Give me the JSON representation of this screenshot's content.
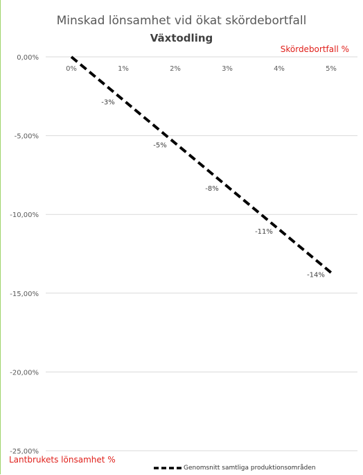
{
  "chart_data": {
    "type": "line",
    "title": "Minskad lönsamhet vid ökat skördebortfall",
    "subtitle": "Växtodling",
    "xlabel": "Skördebortfall %",
    "ylabel": "Lantbrukets lönsamhet %",
    "x": [
      0,
      1,
      2,
      3,
      4,
      5
    ],
    "x_tick_labels": [
      "0%",
      "1%",
      "2%",
      "3%",
      "4%",
      "5%"
    ],
    "y_tick_values": [
      0,
      -5,
      -10,
      -15,
      -20,
      -25
    ],
    "y_tick_labels": [
      "0,00%",
      "-5,00%",
      "-10,00%",
      "-15,00%",
      "-20,00%",
      "-25,00%"
    ],
    "ylim": [
      -25,
      0
    ],
    "xlim": [
      0,
      5
    ],
    "series": [
      {
        "name": "Genomsnitt samtliga produktionsområden",
        "x": [
          0,
          5
        ],
        "y": [
          0,
          -13.7
        ],
        "style": "dashed",
        "color": "#000000"
      }
    ],
    "data_labels": [
      {
        "x": 1,
        "y": -2.74,
        "text": "-3%"
      },
      {
        "x": 2,
        "y": -5.48,
        "text": "-5%"
      },
      {
        "x": 3,
        "y": -8.22,
        "text": "-8%"
      },
      {
        "x": 4,
        "y": -10.96,
        "text": "-11%"
      },
      {
        "x": 5,
        "y": -13.7,
        "text": "-14%"
      }
    ],
    "grid": "horizontal",
    "legend_position": "bottom-right"
  },
  "colors": {
    "axis_title_red": "#e0201b",
    "gridline": "#d9d9d9",
    "frame_left": "#9ed36a"
  }
}
